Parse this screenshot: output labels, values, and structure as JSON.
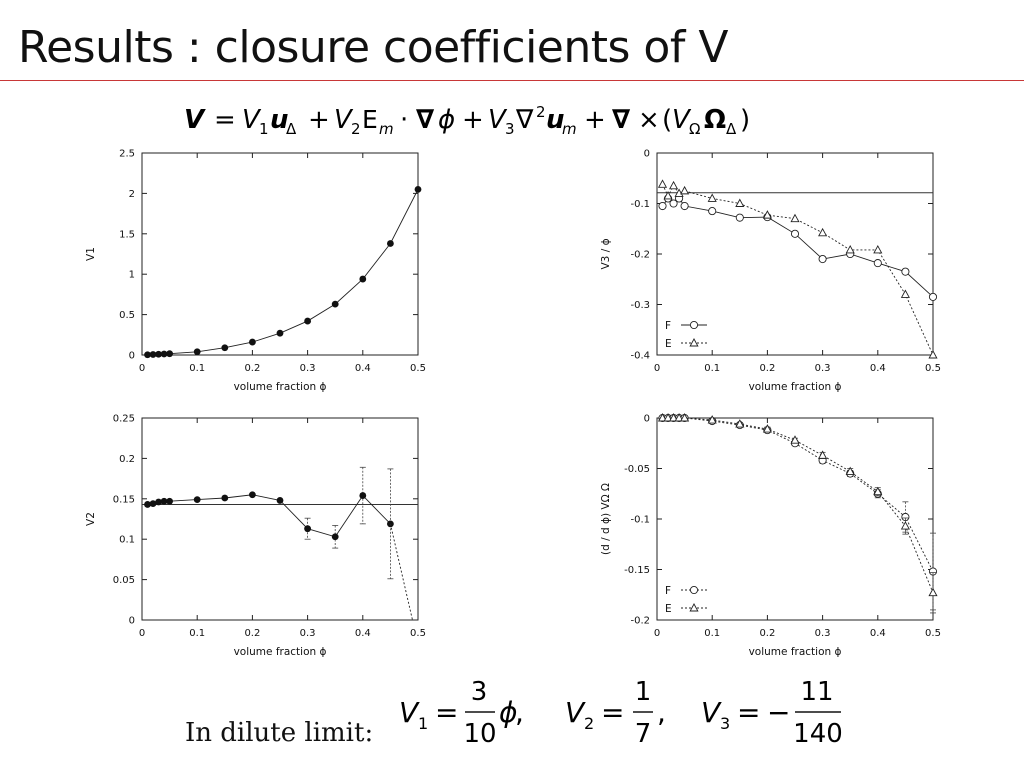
{
  "slide": {
    "title": "Results : closure coefficients of V",
    "dilute_label": "In dilute limit:"
  },
  "chart_data": [
    {
      "id": "v1",
      "type": "line",
      "xlabel": "volume fraction ϕ",
      "ylabel": "V1",
      "xlim": [
        0,
        0.5
      ],
      "ylim": [
        0,
        2.5
      ],
      "xticks": [
        "0",
        "0.1",
        "0.2",
        "0.3",
        "0.4",
        "0.5"
      ],
      "yticks": [
        "0",
        "0.5",
        "1",
        "1.5",
        "2",
        "2.5"
      ],
      "series": [
        {
          "marker": "filled-circle",
          "x": [
            0.01,
            0.02,
            0.03,
            0.04,
            0.05,
            0.1,
            0.15,
            0.2,
            0.25,
            0.3,
            0.35,
            0.4,
            0.45,
            0.5
          ],
          "y": [
            0.003,
            0.006,
            0.009,
            0.012,
            0.016,
            0.04,
            0.09,
            0.16,
            0.27,
            0.42,
            0.63,
            0.94,
            1.38,
            2.05
          ]
        }
      ]
    },
    {
      "id": "v3",
      "type": "line",
      "xlabel": "volume fraction ϕ",
      "ylabel": "V3 / ϕ",
      "xlim": [
        0,
        0.5
      ],
      "ylim": [
        -0.4,
        0
      ],
      "xticks": [
        "0",
        "0.1",
        "0.2",
        "0.3",
        "0.4",
        "0.5"
      ],
      "yticks": [
        "0",
        "-0.1",
        "-0.2",
        "-0.3",
        "-0.4"
      ],
      "reference_line": -0.0786,
      "legend": "bottom-left",
      "series": [
        {
          "name": "F",
          "marker": "open-circle",
          "dash": "solid",
          "x": [
            0.01,
            0.02,
            0.03,
            0.04,
            0.05,
            0.1,
            0.15,
            0.2,
            0.25,
            0.3,
            0.35,
            0.4,
            0.45,
            0.5
          ],
          "y": [
            -0.105,
            -0.09,
            -0.1,
            -0.09,
            -0.105,
            -0.115,
            -0.128,
            -0.127,
            -0.16,
            -0.21,
            -0.2,
            -0.218,
            -0.235,
            -0.285
          ]
        },
        {
          "name": "E",
          "marker": "open-triangle",
          "dash": "dotted",
          "x": [
            0.01,
            0.02,
            0.03,
            0.04,
            0.05,
            0.1,
            0.15,
            0.2,
            0.25,
            0.3,
            0.35,
            0.4,
            0.45,
            0.5
          ],
          "y": [
            -0.062,
            -0.085,
            -0.065,
            -0.08,
            -0.075,
            -0.09,
            -0.1,
            -0.123,
            -0.13,
            -0.158,
            -0.192,
            -0.192,
            -0.28,
            -0.4
          ]
        }
      ]
    },
    {
      "id": "v2",
      "type": "line",
      "xlabel": "volume fraction ϕ",
      "ylabel": "V2",
      "xlim": [
        0,
        0.5
      ],
      "ylim": [
        0,
        0.25
      ],
      "xticks": [
        "0",
        "0.1",
        "0.2",
        "0.3",
        "0.4",
        "0.5"
      ],
      "yticks": [
        "0",
        "0.05",
        "0.1",
        "0.15",
        "0.2",
        "0.25"
      ],
      "reference_line": 0.1429,
      "series": [
        {
          "marker": "filled-circle",
          "x": [
            0.01,
            0.02,
            0.03,
            0.04,
            0.05,
            0.1,
            0.15,
            0.2,
            0.25,
            0.3,
            0.35,
            0.4,
            0.45
          ],
          "y": [
            0.143,
            0.144,
            0.146,
            0.147,
            0.147,
            0.149,
            0.151,
            0.155,
            0.148,
            0.113,
            0.103,
            0.154,
            0.119
          ],
          "err": [
            0,
            0,
            0,
            0,
            0,
            0,
            0,
            0,
            0,
            0.013,
            0.014,
            0.035,
            0.068
          ]
        },
        {
          "marker": "none",
          "dash": "dotted",
          "x": [
            0.45,
            0.49
          ],
          "y": [
            0.119,
            0
          ]
        }
      ]
    },
    {
      "id": "dvomega",
      "type": "line",
      "xlabel": "volume fraction ϕ",
      "ylabel": "(d / d ϕ) VΩ Ω",
      "xlim": [
        0,
        0.5
      ],
      "ylim": [
        -0.2,
        0
      ],
      "xticks": [
        "0",
        "0.1",
        "0.2",
        "0.3",
        "0.4",
        "0.5"
      ],
      "yticks": [
        "0",
        "-0.05",
        "-0.1",
        "-0.15",
        "-0.2"
      ],
      "legend": "bottom-left",
      "series": [
        {
          "name": "F",
          "marker": "open-circle",
          "dash": "dotted",
          "x": [
            0.01,
            0.02,
            0.03,
            0.04,
            0.05,
            0.1,
            0.15,
            0.2,
            0.25,
            0.3,
            0.35,
            0.4,
            0.45,
            0.5
          ],
          "y": [
            0,
            0,
            0,
            0,
            0,
            -0.003,
            -0.007,
            -0.012,
            -0.025,
            -0.042,
            -0.055,
            -0.075,
            -0.098,
            -0.152
          ],
          "err": [
            0,
            0,
            0,
            0,
            0,
            0.001,
            0.001,
            0.002,
            0.002,
            0.003,
            0.003,
            0.004,
            0.015,
            0.038
          ]
        },
        {
          "name": "E",
          "marker": "open-triangle",
          "dash": "dotted",
          "x": [
            0.01,
            0.02,
            0.03,
            0.04,
            0.05,
            0.1,
            0.15,
            0.2,
            0.25,
            0.3,
            0.35,
            0.4,
            0.45,
            0.5
          ],
          "y": [
            0,
            0,
            0,
            0,
            0,
            -0.002,
            -0.006,
            -0.011,
            -0.022,
            -0.037,
            -0.053,
            -0.073,
            -0.107,
            -0.173
          ],
          "err": [
            0,
            0,
            0,
            0,
            0,
            0.001,
            0.001,
            0.002,
            0.002,
            0.003,
            0.003,
            0.004,
            0.008,
            0.02
          ]
        }
      ]
    }
  ]
}
